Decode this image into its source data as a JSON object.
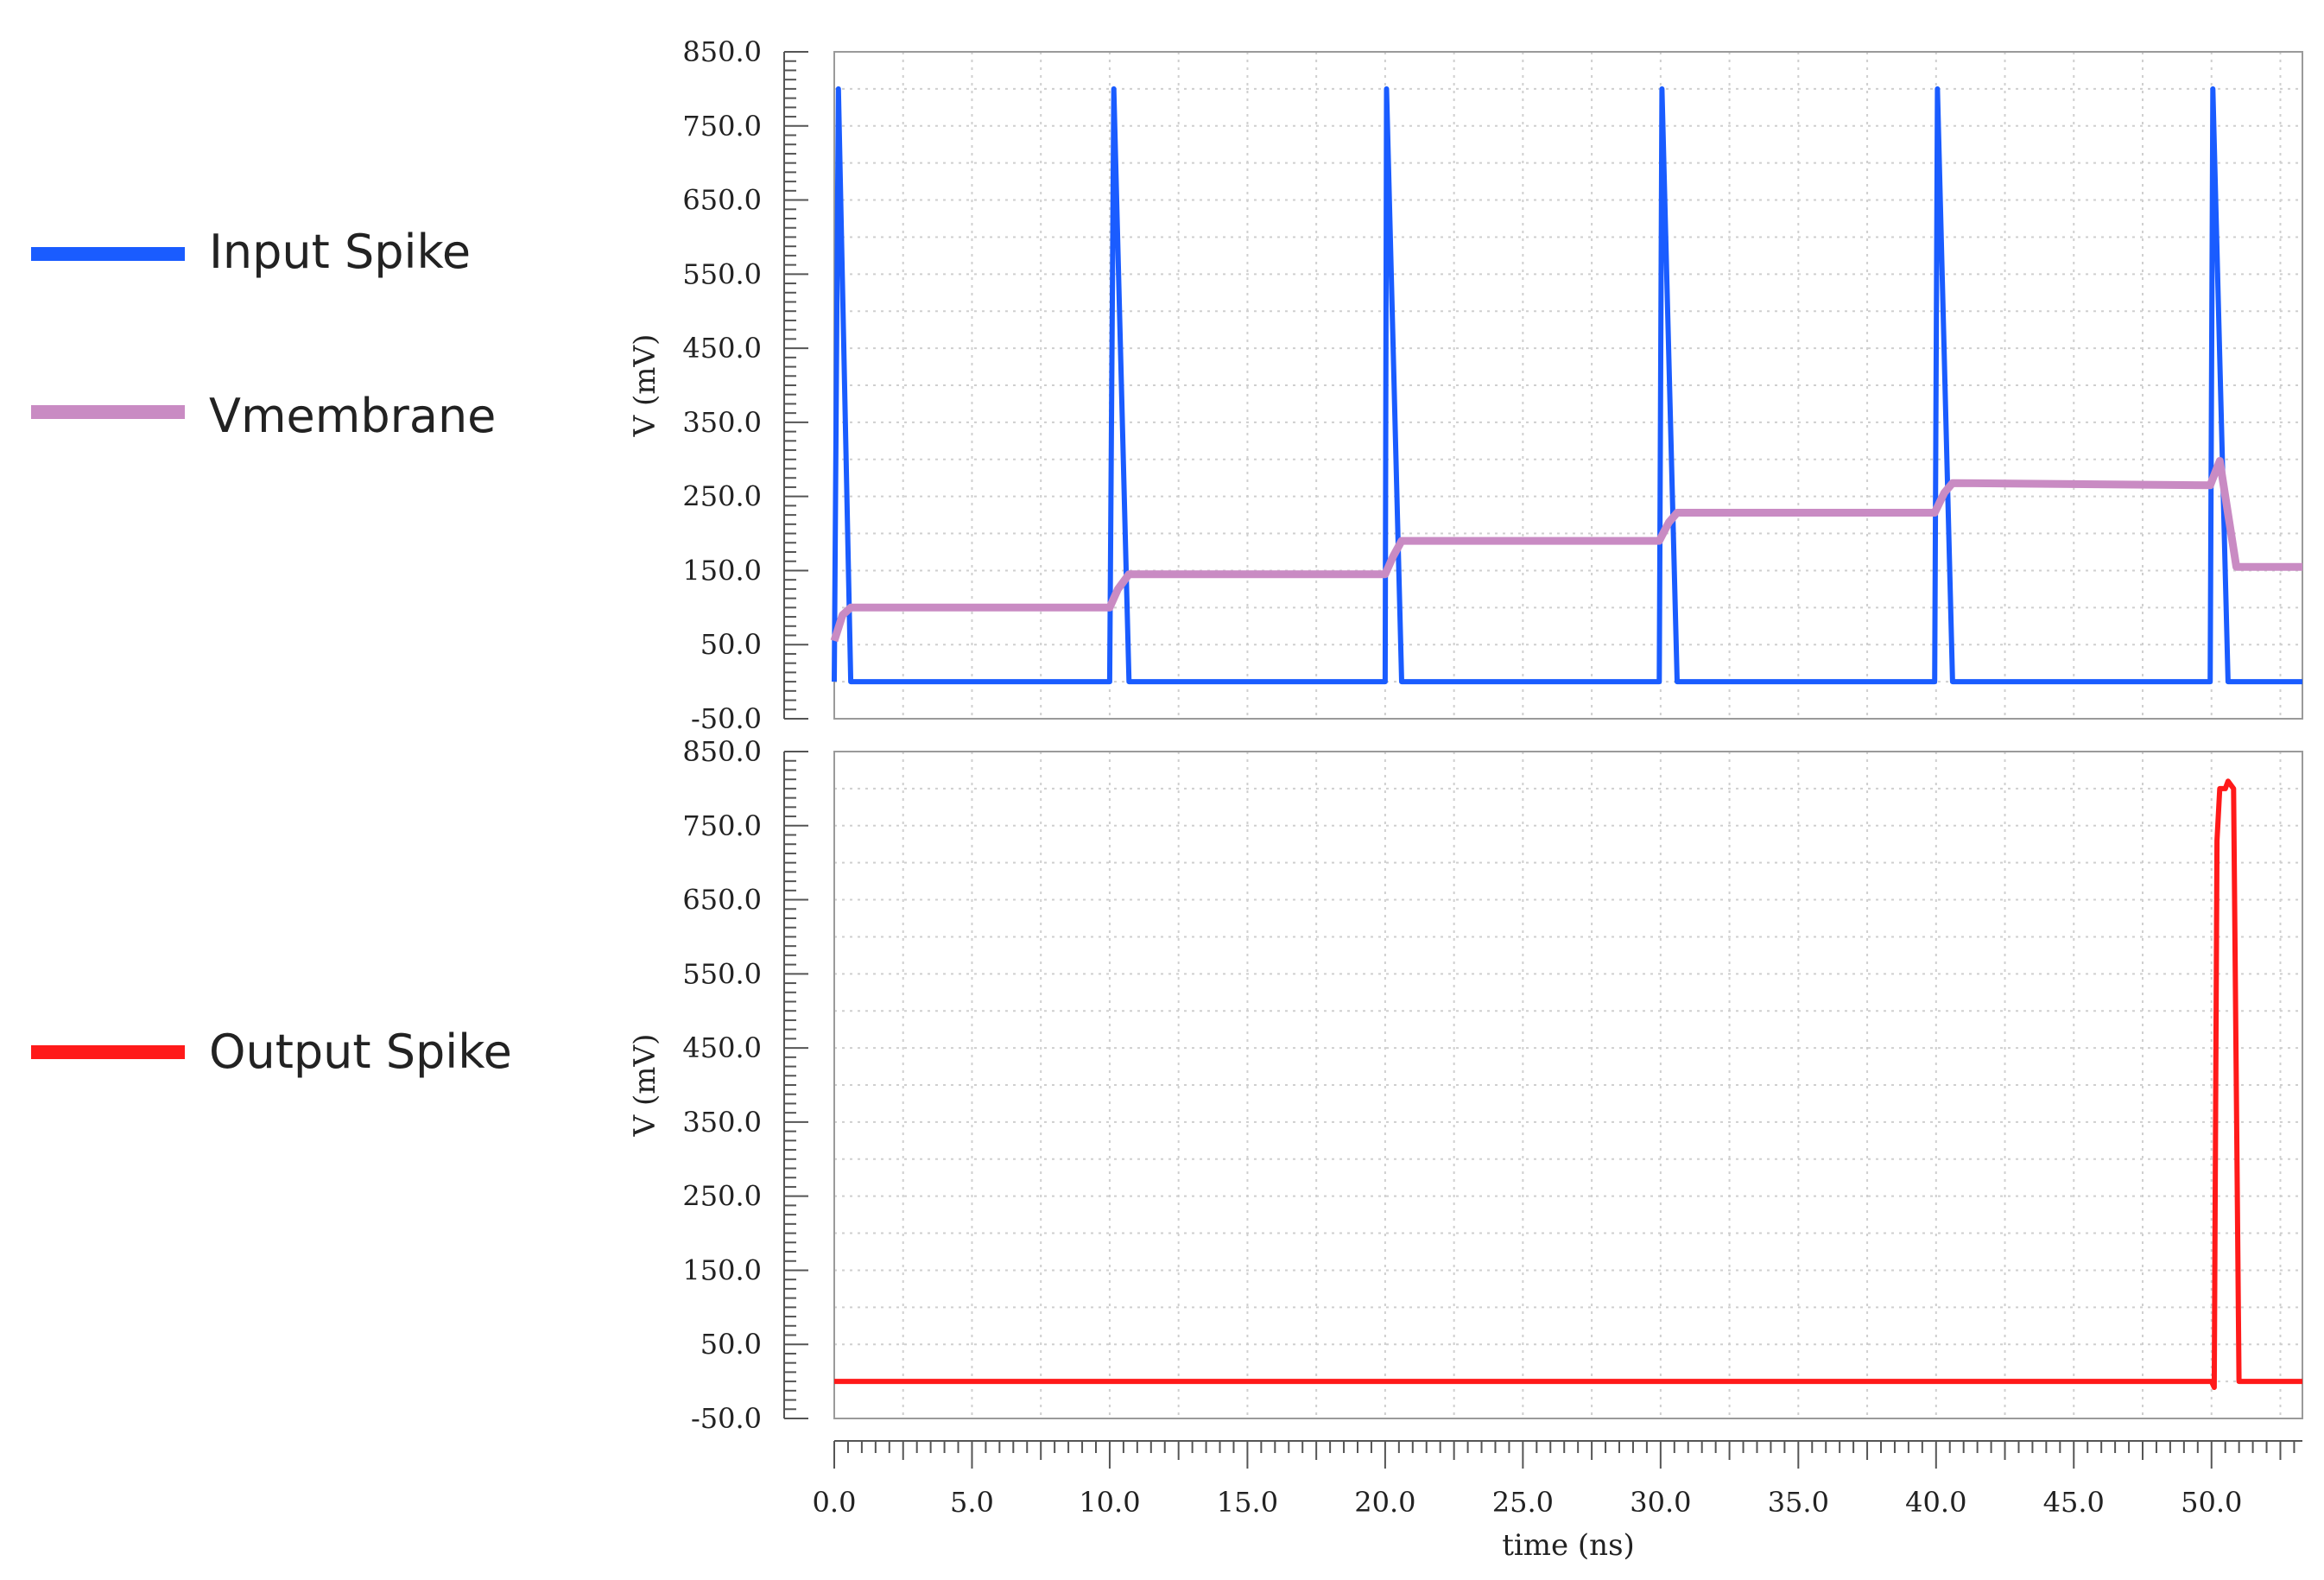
{
  "chart_data": [
    {
      "type": "line",
      "ylabel": "V (mV)",
      "xlabel": "",
      "xlim": [
        0,
        53.3
      ],
      "ylim": [
        -50,
        850
      ],
      "yticks": [
        "850.0",
        "750.0",
        "650.0",
        "550.0",
        "450.0",
        "350.0",
        "250.0",
        "150.0",
        "50.0",
        "-50.0"
      ],
      "grid": true,
      "legend_position": "left",
      "series": [
        {
          "name": "Input Spike",
          "color": "#1a5cff",
          "x": [
            0,
            0.15,
            0.6,
            10.0,
            10.15,
            10.7,
            20.0,
            20.05,
            20.6,
            29.95,
            30.05,
            30.6,
            39.95,
            40.05,
            40.6,
            49.95,
            50.05,
            50.6,
            53.3
          ],
          "y": [
            0,
            800,
            0,
            0,
            800,
            0,
            0,
            800,
            0,
            0,
            800,
            0,
            0,
            800,
            0,
            0,
            800,
            0,
            0
          ]
        },
        {
          "name": "Vmembrane",
          "color": "#c98bc3",
          "x": [
            0,
            0.3,
            0.6,
            10.0,
            10.3,
            10.7,
            20.0,
            20.3,
            20.6,
            29.95,
            30.3,
            30.6,
            39.95,
            40.3,
            40.6,
            49.95,
            50.3,
            50.9,
            53.3
          ],
          "y": [
            55,
            90,
            100,
            100,
            125,
            145,
            145,
            170,
            190,
            190,
            215,
            228,
            228,
            255,
            268,
            265,
            298,
            155,
            155
          ]
        }
      ]
    },
    {
      "type": "line",
      "ylabel": "V (mV)",
      "xlabel": "time (ns)",
      "xlim": [
        0,
        53.3
      ],
      "ylim": [
        -50,
        850
      ],
      "yticks": [
        "850.0",
        "750.0",
        "650.0",
        "550.0",
        "450.0",
        "350.0",
        "250.0",
        "150.0",
        "50.0",
        "-50.0"
      ],
      "xticks": [
        "0.0",
        "5.0",
        "10.0",
        "15.0",
        "20.0",
        "25.0",
        "30.0",
        "35.0",
        "40.0",
        "45.0",
        "50.0"
      ],
      "grid": true,
      "legend_position": "left",
      "series": [
        {
          "name": "Output Spike",
          "color": "#ff1a1a",
          "x": [
            0,
            50.0,
            50.1,
            50.2,
            50.3,
            50.5,
            50.6,
            50.8,
            51.0,
            53.3
          ],
          "y": [
            0,
            0,
            -8,
            730,
            800,
            800,
            810,
            800,
            0,
            0
          ]
        }
      ]
    }
  ]
}
